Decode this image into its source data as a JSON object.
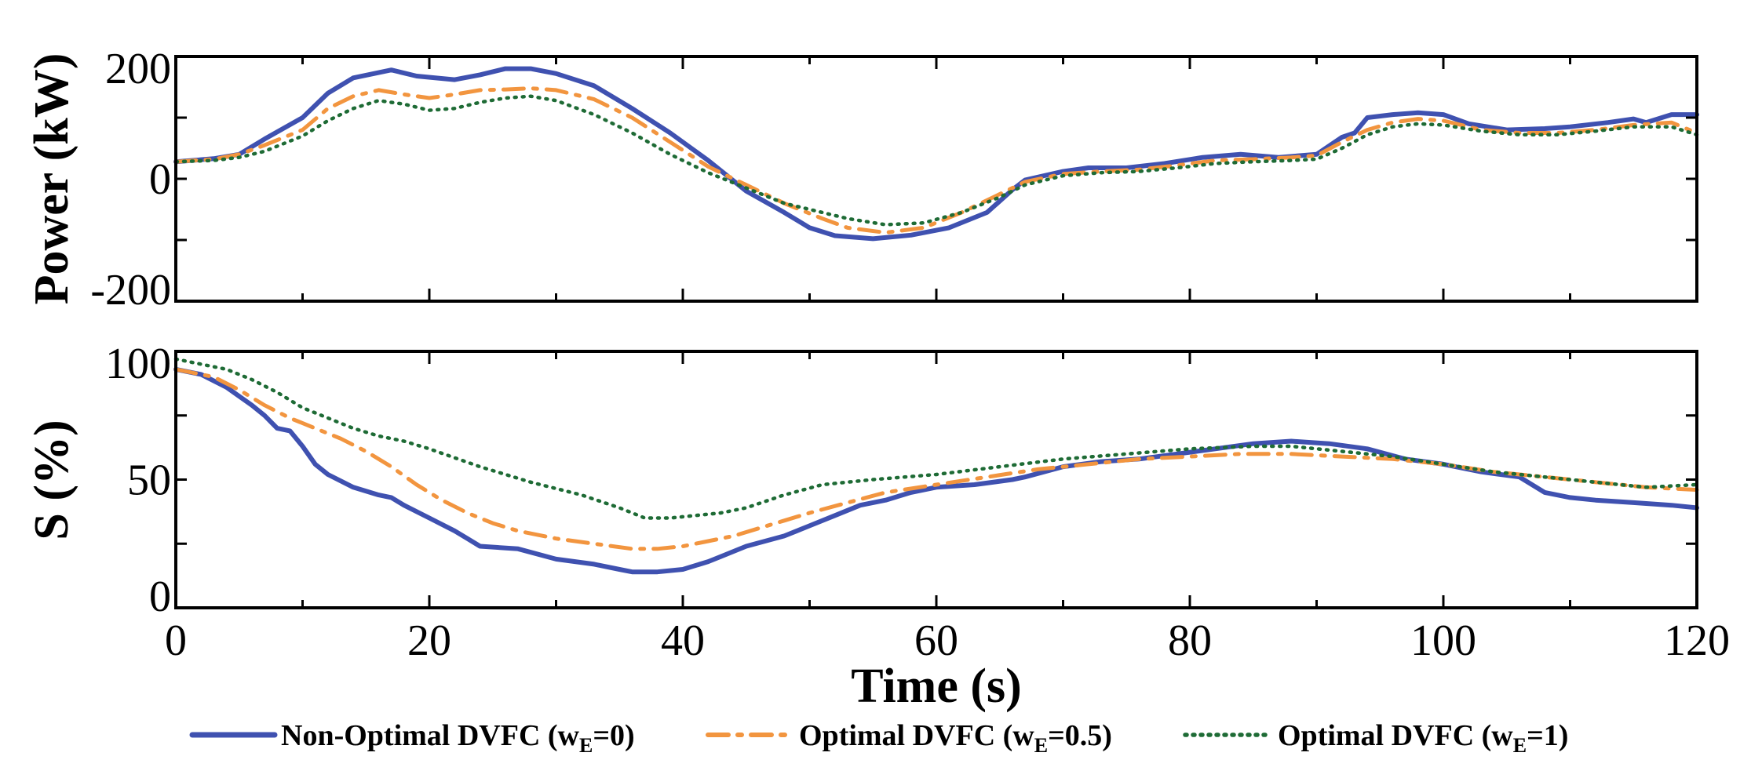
{
  "chart_data": [
    {
      "type": "line",
      "name": "power",
      "ylabel": "Power (kW)",
      "xlim": [
        0,
        120
      ],
      "ylim": [
        -200,
        200
      ],
      "yticks": [
        -200,
        0,
        200
      ],
      "ytick_labels": [
        "-200",
        "0",
        "200"
      ],
      "grid": false,
      "series": [
        {
          "name": "Non-Optimal DVFC (wE=0)",
          "color": "#3F51B0",
          "style": "solid",
          "x": [
            0,
            3,
            5,
            7,
            10,
            12,
            14,
            17,
            19,
            22,
            24,
            26,
            28,
            30,
            33,
            36,
            39,
            42,
            45,
            48,
            50,
            52,
            55,
            58,
            61,
            64,
            66,
            67,
            70,
            72,
            75,
            78,
            81,
            84,
            87,
            90,
            92,
            93,
            94,
            96,
            98,
            100,
            102,
            105,
            108,
            110,
            113,
            115,
            116,
            118,
            120
          ],
          "y": [
            28,
            33,
            40,
            65,
            100,
            140,
            165,
            178,
            168,
            162,
            170,
            180,
            180,
            172,
            152,
            115,
            75,
            30,
            -20,
            -55,
            -80,
            -93,
            -98,
            -92,
            -80,
            -55,
            -18,
            -2,
            12,
            18,
            18,
            25,
            35,
            40,
            35,
            40,
            68,
            75,
            100,
            105,
            108,
            105,
            90,
            80,
            82,
            85,
            92,
            98,
            92,
            105,
            105
          ]
        },
        {
          "name": "Optimal DVFC (wE=0.5)",
          "color": "#F2953F",
          "style": "dashdot",
          "x": [
            0,
            3,
            5,
            7,
            10,
            12,
            14,
            16,
            18,
            20,
            22,
            24,
            26,
            28,
            30,
            33,
            36,
            39,
            42,
            45,
            48,
            51,
            53,
            56,
            59,
            62,
            65,
            67,
            70,
            73,
            76,
            79,
            82,
            85,
            88,
            90,
            92,
            94,
            96,
            98,
            100,
            103,
            106,
            109,
            112,
            115,
            118,
            120
          ],
          "y": [
            28,
            32,
            40,
            55,
            80,
            115,
            135,
            145,
            138,
            132,
            138,
            145,
            146,
            148,
            145,
            130,
            100,
            60,
            20,
            -10,
            -40,
            -65,
            -80,
            -88,
            -80,
            -55,
            -25,
            -5,
            8,
            12,
            15,
            22,
            30,
            32,
            35,
            38,
            60,
            80,
            92,
            98,
            95,
            80,
            75,
            75,
            80,
            88,
            92,
            75
          ]
        },
        {
          "name": "Optimal DVFC (wE=1)",
          "color": "#1E6B35",
          "style": "dotted",
          "x": [
            0,
            3,
            5,
            7,
            10,
            12,
            14,
            16,
            18,
            20,
            22,
            24,
            26,
            28,
            30,
            33,
            36,
            39,
            42,
            45,
            48,
            51,
            53,
            56,
            59,
            62,
            65,
            67,
            70,
            73,
            76,
            79,
            82,
            85,
            88,
            90,
            92,
            94,
            96,
            98,
            100,
            103,
            106,
            109,
            112,
            115,
            118,
            120
          ],
          "y": [
            28,
            30,
            35,
            45,
            70,
            95,
            115,
            128,
            122,
            112,
            115,
            125,
            132,
            135,
            128,
            105,
            75,
            40,
            10,
            -15,
            -40,
            -55,
            -65,
            -75,
            -72,
            -55,
            -30,
            -10,
            5,
            10,
            12,
            18,
            25,
            28,
            30,
            32,
            50,
            72,
            85,
            90,
            88,
            78,
            72,
            72,
            78,
            85,
            85,
            72
          ]
        }
      ]
    },
    {
      "type": "line",
      "name": "soc",
      "ylabel": "S (%)",
      "xlabel": "Time (s)",
      "xlim": [
        0,
        120
      ],
      "ylim": [
        0,
        100
      ],
      "xticks": [
        0,
        20,
        40,
        60,
        80,
        100,
        120
      ],
      "xtick_labels": [
        "0",
        "20",
        "40",
        "60",
        "80",
        "100",
        "120"
      ],
      "yticks": [
        0,
        50,
        100
      ],
      "ytick_labels": [
        "0",
        "50",
        "100"
      ],
      "grid": false,
      "series": [
        {
          "name": "Non-Optimal DVFC (wE=0)",
          "color": "#3F51B0",
          "style": "solid",
          "x": [
            0,
            2,
            4,
            6,
            7,
            8,
            9,
            10,
            11,
            12,
            14,
            16,
            17,
            18,
            20,
            22,
            23,
            24,
            27,
            30,
            33,
            35,
            36,
            38,
            40,
            42,
            43,
            45,
            48,
            50,
            52,
            54,
            56,
            58,
            60,
            63,
            66,
            67,
            70,
            73,
            76,
            79,
            82,
            85,
            88,
            91,
            94,
            97,
            100,
            103,
            106,
            108,
            110,
            112,
            115,
            118,
            120
          ],
          "y": [
            93,
            91,
            86,
            79,
            75,
            70,
            69,
            63,
            56,
            52,
            47,
            44,
            43,
            40,
            35,
            30,
            27,
            24,
            23,
            19,
            17,
            15,
            14,
            14,
            15,
            18,
            20,
            24,
            28,
            32,
            36,
            40,
            42,
            45,
            47,
            48,
            50,
            51,
            55,
            57,
            58,
            60,
            62,
            64,
            65,
            64,
            62,
            58,
            56,
            53,
            51,
            45,
            43,
            42,
            41,
            40,
            39
          ]
        },
        {
          "name": "Optimal DVFC (wE=0.5)",
          "color": "#F2953F",
          "style": "dashdot",
          "x": [
            0,
            3,
            5,
            7,
            9,
            11,
            13,
            15,
            17,
            19,
            21,
            23,
            25,
            27,
            30,
            33,
            36,
            38,
            40,
            42,
            44,
            46,
            48,
            50,
            53,
            56,
            60,
            64,
            68,
            72,
            76,
            80,
            84,
            88,
            92,
            96,
            100,
            104,
            108,
            112,
            116,
            120
          ],
          "y": [
            93,
            90,
            85,
            79,
            74,
            70,
            66,
            61,
            55,
            48,
            42,
            37,
            33,
            30,
            27,
            25,
            23,
            23,
            24,
            26,
            28,
            31,
            34,
            37,
            41,
            45,
            48,
            51,
            54,
            56,
            58,
            59,
            60,
            60,
            59,
            58,
            56,
            53,
            51,
            49,
            47,
            46
          ]
        },
        {
          "name": "Optimal DVFC (wE=1)",
          "color": "#1E6B35",
          "style": "dotted",
          "x": [
            0,
            2,
            4,
            6,
            8,
            10,
            12,
            14,
            16,
            18,
            20,
            24,
            28,
            32,
            35,
            37,
            39,
            41,
            43,
            45,
            48,
            51,
            55,
            60,
            65,
            70,
            75,
            80,
            85,
            88,
            92,
            96,
            100,
            104,
            108,
            112,
            116,
            120
          ],
          "y": [
            97,
            95,
            93,
            89,
            84,
            78,
            74,
            70,
            67,
            65,
            62,
            55,
            49,
            44,
            39,
            35,
            35,
            36,
            37,
            39,
            44,
            48,
            50,
            52,
            55,
            58,
            60,
            62,
            63,
            63,
            61,
            59,
            56,
            53,
            51,
            49,
            47,
            48
          ]
        }
      ]
    }
  ],
  "legend": {
    "entries": [
      {
        "prefix": "Non-Optimal DVFC (w",
        "sub": "E",
        "suffix": "=0)"
      },
      {
        "prefix": "Optimal DVFC (w",
        "sub": "E",
        "suffix": "=0.5)"
      },
      {
        "prefix": "Optimal DVFC (w",
        "sub": "E",
        "suffix": "=1)"
      }
    ],
    "placement": "bottom"
  }
}
